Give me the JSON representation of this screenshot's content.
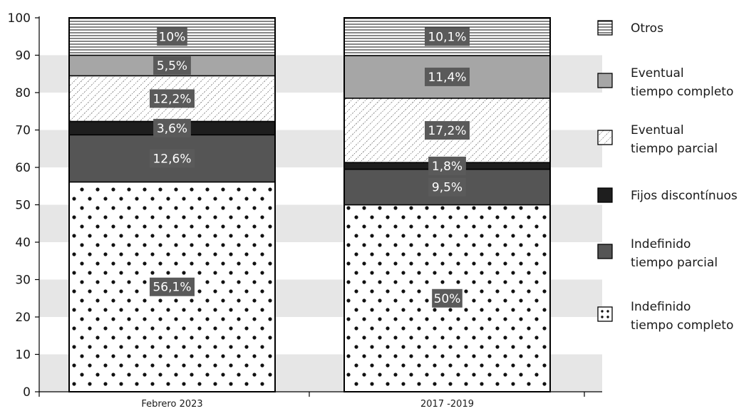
{
  "chart_data": {
    "type": "bar",
    "stacked": true,
    "categories": [
      "Febrero 2023",
      "2017 -2019"
    ],
    "ylim": [
      0,
      100
    ],
    "yticks": [
      0,
      10,
      20,
      30,
      40,
      50,
      60,
      70,
      80,
      90,
      100
    ],
    "grid": "alternating horizontal bands",
    "legend_position": "right",
    "series": [
      {
        "name": "Indefinido\ntiempo completo",
        "values": [
          56.1,
          50
        ],
        "labels": [
          "56,1%",
          "50%"
        ],
        "pattern": "dots"
      },
      {
        "name": "Indefinido\ntiempo parcial",
        "values": [
          12.6,
          9.5
        ],
        "labels": [
          "12,6%",
          "9,5%"
        ],
        "pattern": "darkgray",
        "color": "#555555"
      },
      {
        "name": "Fijos discontínuos",
        "values": [
          3.6,
          1.8
        ],
        "labels": [
          "3,6%",
          "1,8%"
        ],
        "pattern": "black",
        "color": "#1e1e1e"
      },
      {
        "name": "Eventual\ntiempo parcial",
        "values": [
          12.2,
          17.2
        ],
        "labels": [
          "12,2%",
          "17,2%"
        ],
        "pattern": "diagonal"
      },
      {
        "name": "Eventual\ntiempo completo",
        "values": [
          5.5,
          11.4
        ],
        "labels": [
          "5,5%",
          "11,4%"
        ],
        "pattern": "lightgray",
        "color": "#a6a6a6"
      },
      {
        "name": "Otros",
        "values": [
          10,
          10.1
        ],
        "labels": [
          "10%",
          "10,1%"
        ],
        "pattern": "horizontal"
      }
    ],
    "legend_order": [
      "Otros",
      "Eventual\ntiempo completo",
      "Eventual\ntiempo parcial",
      "Fijos discontínuos",
      "Indefinido\ntiempo parcial",
      "Indefinido\ntiempo completo"
    ],
    "colors": {
      "band": "#e6e6e6",
      "label_box": "#5a5a5a",
      "axis": "#000000"
    }
  }
}
